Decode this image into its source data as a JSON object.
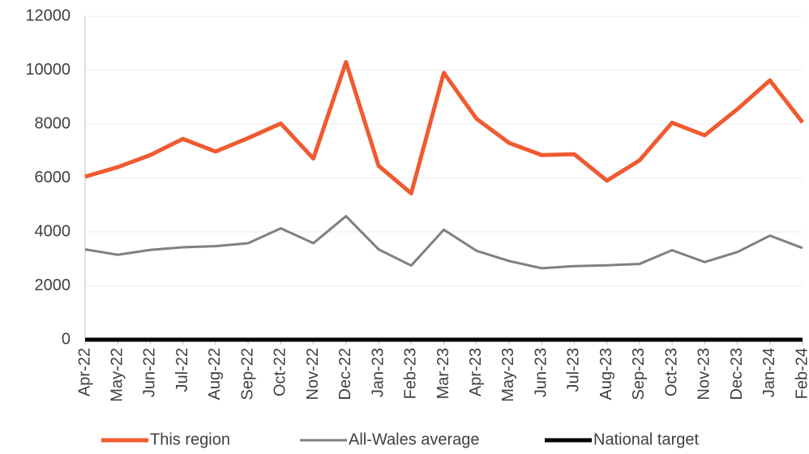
{
  "chart_data": {
    "type": "line",
    "categories": [
      "Apr-22",
      "May-22",
      "Jun-22",
      "Jul-22",
      "Aug-22",
      "Sep-22",
      "Oct-22",
      "Nov-22",
      "Dec-22",
      "Jan-23",
      "Feb-23",
      "Mar-23",
      "Apr-23",
      "May-23",
      "Jun-23",
      "Jul-23",
      "Aug-23",
      "Sep-23",
      "Oct-23",
      "Nov-23",
      "Dec-23",
      "Jan-24",
      "Feb-24"
    ],
    "series": [
      {
        "name": "This region",
        "color": "#f05a30",
        "width": 5,
        "values": [
          6050,
          6400,
          6850,
          7450,
          6980,
          7480,
          8020,
          6720,
          10300,
          6450,
          5430,
          9900,
          8200,
          7300,
          6850,
          6880,
          5900,
          6650,
          8050,
          7580,
          8550,
          9620,
          8060
        ]
      },
      {
        "name": "All-Wales average",
        "color": "#808080",
        "width": 3,
        "values": [
          3350,
          3150,
          3330,
          3430,
          3470,
          3580,
          4130,
          3580,
          4580,
          3350,
          2750,
          4080,
          3300,
          2920,
          2650,
          2730,
          2760,
          2810,
          3320,
          2880,
          3250,
          3860,
          3400
        ]
      },
      {
        "name": "National target",
        "color": "#000000",
        "width": 5,
        "values": [
          0,
          0,
          0,
          0,
          0,
          0,
          0,
          0,
          0,
          0,
          0,
          0,
          0,
          0,
          0,
          0,
          0,
          0,
          0,
          0,
          0,
          0,
          0
        ]
      }
    ],
    "ylim": [
      0,
      12000
    ],
    "yticks": [
      0,
      2000,
      4000,
      6000,
      8000,
      10000,
      12000
    ],
    "grid": true,
    "legend": "bottom"
  }
}
